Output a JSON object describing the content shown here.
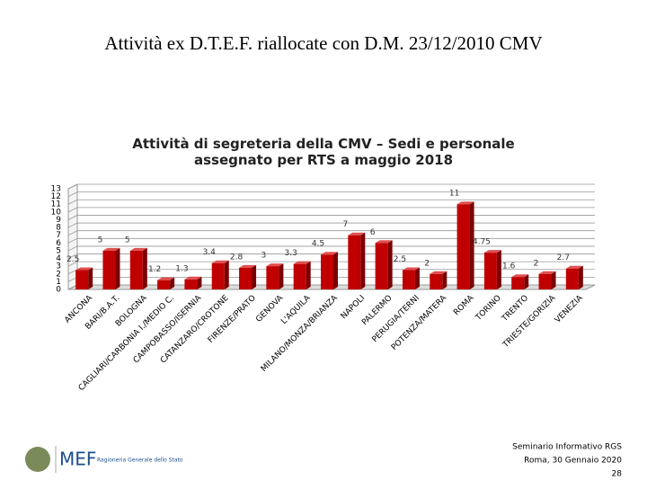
{
  "slide": {
    "title": "Attività ex D.T.E.F. riallocate con D.M. 23/12/2010 CMV",
    "logo": "MEF",
    "logo_caption": "Ragioneria Generale dello Stato",
    "footer": [
      "Seminario Informativo RGS",
      "Roma, 30 Gennaio 2020",
      "28"
    ]
  },
  "chart_data": {
    "type": "bar",
    "title": "Attività di segreteria della CMV – Sedi e personale assegnato per RTS a maggio 2018",
    "categories": [
      "ANCONA",
      "BARI/B.A.T.",
      "BOLOGNA",
      "CAGLIARI/CARBONIA I./MEDIO C.",
      "CAMPOBASSO/ISERNIA",
      "CATANZARO/CROTONE",
      "FIRENZE/PRATO",
      "GENOVA",
      "L'AQUILA",
      "MILANO/MONZA/BRIANZA",
      "NAPOLI",
      "PALERMO",
      "PERUGIA/TERNI",
      "POTENZA/MATERA",
      "ROMA",
      "TORINO",
      "TRENTO",
      "TRIESTE/GORIZIA",
      "VENEZIA"
    ],
    "values": [
      2.5,
      5,
      5,
      1.2,
      1.3,
      3.4,
      2.8,
      3,
      3.3,
      4.5,
      7,
      6,
      2.5,
      2,
      11,
      4.75,
      1.6,
      2,
      2.7
    ],
    "color": "#c00000",
    "ylim": [
      0,
      13
    ],
    "yticks": [
      0,
      1,
      2,
      3,
      4,
      5,
      6,
      7,
      8,
      9,
      10,
      11,
      12,
      13
    ],
    "grid": true
  }
}
